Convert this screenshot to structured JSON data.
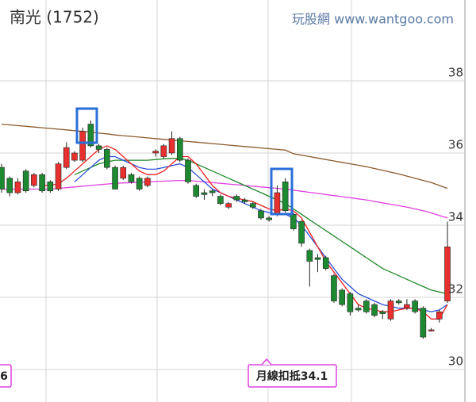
{
  "chart_data": {
    "type": "candlestick",
    "title": "南光 (1752)",
    "watermark": "玩股網 www.wantgoo.com",
    "ylim": [
      29.1,
      40.24
    ],
    "yticks": [
      30,
      32,
      34,
      36,
      38
    ],
    "grid": true,
    "up_color": "#e8302e",
    "down_color": "#1d8a32",
    "open": [
      35.6,
      35.3,
      34.9,
      35.5,
      35.1,
      35.4,
      35.2,
      35.0,
      35.6,
      35.8,
      35.8,
      36.8,
      36.2,
      36.1,
      35.6,
      35.3,
      35.4,
      35.3,
      35.1,
      36.0,
      35.9,
      36.0,
      36.4,
      35.8,
      35.1,
      34.9,
      34.95,
      34.8,
      34.5,
      34.8,
      34.7,
      34.6,
      34.4,
      34.2,
      34.3,
      35.2,
      34.3,
      34.1,
      33.3,
      33.1,
      33.1,
      32.6,
      32.2,
      32.1,
      31.7,
      31.9,
      31.8,
      31.6,
      31.4,
      31.9,
      31.7,
      31.9,
      31.7,
      31.1,
      31.4,
      31.9
    ],
    "high": [
      35.7,
      35.35,
      35.3,
      35.55,
      35.45,
      35.45,
      35.25,
      35.75,
      36.3,
      36.05,
      36.7,
      36.9,
      36.25,
      36.15,
      35.65,
      35.65,
      35.45,
      35.35,
      35.35,
      36.1,
      36.25,
      36.6,
      36.45,
      35.85,
      35.15,
      35.0,
      35.0,
      34.85,
      34.65,
      34.85,
      34.75,
      34.65,
      34.45,
      34.25,
      35.1,
      35.3,
      34.35,
      34.15,
      33.35,
      33.2,
      33.15,
      32.65,
      32.25,
      32.15,
      31.8,
      31.95,
      31.85,
      31.65,
      31.95,
      31.95,
      31.95,
      31.95,
      31.75,
      31.15,
      31.65,
      34.1
    ],
    "low": [
      34.9,
      34.8,
      34.85,
      34.9,
      35.05,
      34.9,
      34.9,
      34.95,
      35.55,
      35.75,
      35.75,
      36.15,
      36.0,
      35.55,
      35.0,
      35.25,
      35.15,
      34.95,
      35.05,
      35.9,
      35.85,
      35.95,
      35.75,
      35.15,
      34.75,
      34.7,
      34.8,
      34.55,
      34.45,
      34.65,
      34.6,
      34.45,
      34.15,
      34.1,
      34.25,
      34.35,
      33.85,
      33.4,
      32.3,
      32.7,
      32.75,
      31.85,
      31.75,
      31.5,
      31.6,
      31.55,
      31.45,
      31.4,
      31.35,
      31.8,
      31.65,
      31.55,
      30.85,
      31.05,
      31.3,
      31.85
    ],
    "close": [
      35.0,
      34.9,
      35.2,
      34.95,
      35.4,
      34.95,
      34.95,
      35.7,
      36.15,
      36.0,
      36.6,
      36.2,
      36.1,
      35.6,
      35.0,
      35.6,
      35.2,
      35.0,
      35.3,
      36.05,
      36.2,
      36.4,
      35.8,
      35.2,
      34.8,
      34.85,
      34.9,
      34.6,
      34.6,
      34.7,
      34.65,
      34.5,
      34.2,
      34.15,
      34.9,
      34.4,
      33.9,
      33.5,
      33.0,
      33.05,
      32.8,
      31.9,
      31.8,
      31.6,
      31.65,
      31.6,
      31.5,
      31.55,
      31.9,
      31.85,
      31.8,
      31.6,
      30.9,
      31.1,
      31.6,
      33.4
    ],
    "series": [
      {
        "color": "#8b5a2b",
        "values": [
          36.8,
          36.78,
          36.76,
          36.74,
          36.72,
          36.7,
          36.68,
          36.66,
          36.64,
          36.62,
          36.6,
          36.58,
          36.55,
          36.53,
          36.5,
          36.48,
          36.46,
          36.44,
          36.42,
          36.4,
          36.38,
          36.36,
          36.34,
          36.32,
          36.3,
          36.28,
          36.26,
          36.24,
          36.22,
          36.2,
          36.18,
          36.16,
          36.14,
          36.12,
          36.1,
          36.08,
          35.98,
          35.94,
          35.9,
          35.86,
          35.82,
          35.78,
          35.74,
          35.7,
          35.66,
          35.62,
          35.57,
          35.52,
          35.47,
          35.42,
          35.36,
          35.3,
          35.24,
          35.18,
          35.1,
          35.02
        ]
      },
      {
        "color": "#e040e0",
        "values": [
          35.0,
          35.0,
          35.0,
          35.0,
          35.0,
          35.0,
          35.0,
          35.02,
          35.04,
          35.06,
          35.08,
          35.1,
          35.12,
          35.14,
          35.16,
          35.17,
          35.18,
          35.19,
          35.2,
          35.21,
          35.22,
          35.23,
          35.24,
          35.24,
          35.22,
          35.2,
          35.18,
          35.16,
          35.14,
          35.12,
          35.1,
          35.08,
          35.06,
          35.04,
          35.02,
          35.0,
          34.97,
          34.94,
          34.91,
          34.88,
          34.85,
          34.82,
          34.79,
          34.76,
          34.73,
          34.7,
          34.66,
          34.62,
          34.58,
          34.54,
          34.5,
          34.45,
          34.4,
          34.34,
          34.27,
          34.2
        ]
      },
      {
        "color": "#1f8a2a",
        "values": [
          null,
          null,
          null,
          null,
          null,
          null,
          null,
          null,
          null,
          35.4,
          35.5,
          35.6,
          35.7,
          35.75,
          35.8,
          35.8,
          35.8,
          35.8,
          35.8,
          35.82,
          35.84,
          35.85,
          35.85,
          35.8,
          35.7,
          35.6,
          35.5,
          35.4,
          35.3,
          35.2,
          35.1,
          35.0,
          34.9,
          34.8,
          34.7,
          34.6,
          34.45,
          34.3,
          34.15,
          34.0,
          33.85,
          33.7,
          33.55,
          33.4,
          33.25,
          33.1,
          32.95,
          32.8,
          32.7,
          32.6,
          32.5,
          32.4,
          32.3,
          32.2,
          32.15,
          32.1
        ]
      },
      {
        "color": "#2b4fd8",
        "values": [
          null,
          null,
          null,
          null,
          null,
          null,
          null,
          null,
          null,
          35.2,
          35.4,
          35.6,
          35.8,
          35.9,
          35.9,
          35.8,
          35.7,
          35.6,
          35.55,
          35.55,
          35.6,
          35.65,
          35.7,
          35.6,
          35.4,
          35.2,
          35.0,
          34.9,
          34.8,
          34.7,
          34.6,
          34.5,
          34.4,
          34.35,
          34.3,
          34.3,
          34.2,
          34.0,
          33.7,
          33.4,
          33.1,
          32.8,
          32.5,
          32.3,
          32.1,
          32.0,
          31.9,
          31.8,
          31.75,
          31.7,
          31.7,
          31.7,
          31.65,
          31.6,
          31.65,
          31.8
        ]
      },
      {
        "color": "#f02020",
        "values": [
          null,
          null,
          null,
          null,
          null,
          35.1,
          35.1,
          35.15,
          35.3,
          35.5,
          35.7,
          35.9,
          36.1,
          36.2,
          36.1,
          35.9,
          35.7,
          35.5,
          35.4,
          35.4,
          35.5,
          35.7,
          35.9,
          35.9,
          35.7,
          35.4,
          35.1,
          34.9,
          34.8,
          34.75,
          34.7,
          34.65,
          34.55,
          34.45,
          34.4,
          34.45,
          34.4,
          34.2,
          33.8,
          33.4,
          33.0,
          32.7,
          32.4,
          32.1,
          31.8,
          31.7,
          31.65,
          31.6,
          31.6,
          31.65,
          31.7,
          31.7,
          31.6,
          31.4,
          31.4,
          31.8
        ]
      }
    ],
    "annotations": [
      "6",
      "月線扣抵34.1"
    ]
  }
}
